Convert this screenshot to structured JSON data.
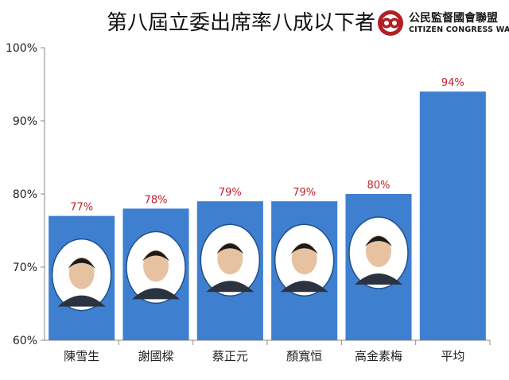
{
  "header": {
    "title": "第八屆立委出席率八成以下者"
  },
  "logo": {
    "name_zh": "公民監督國會聯盟",
    "name_en": "CITIZEN CONGRESS WATCH",
    "brand_color": "#b11f24"
  },
  "chart_data": {
    "type": "bar",
    "categories": [
      "陳雪生",
      "謝國樑",
      "蔡正元",
      "顏寬恒",
      "高金素梅",
      "平均"
    ],
    "values": [
      77,
      78,
      79,
      79,
      80,
      94
    ],
    "value_labels": [
      "77%",
      "78%",
      "79%",
      "79%",
      "80%",
      "94%"
    ],
    "title": "第八屆立委出席率八成以下者",
    "xlabel": "",
    "ylabel": "",
    "ylim": [
      60,
      100
    ],
    "yticks": [
      60,
      70,
      80,
      90,
      100
    ],
    "ytick_labels": [
      "60%",
      "70%",
      "80%",
      "90%",
      "100%"
    ],
    "bar_color": "#3f7fcf",
    "value_label_color": "#c0212b",
    "grid": false,
    "legend": "none",
    "portraits": [
      "陳雪生",
      "謝國樑",
      "蔡正元",
      "顏寬恒",
      "高金素梅"
    ]
  }
}
